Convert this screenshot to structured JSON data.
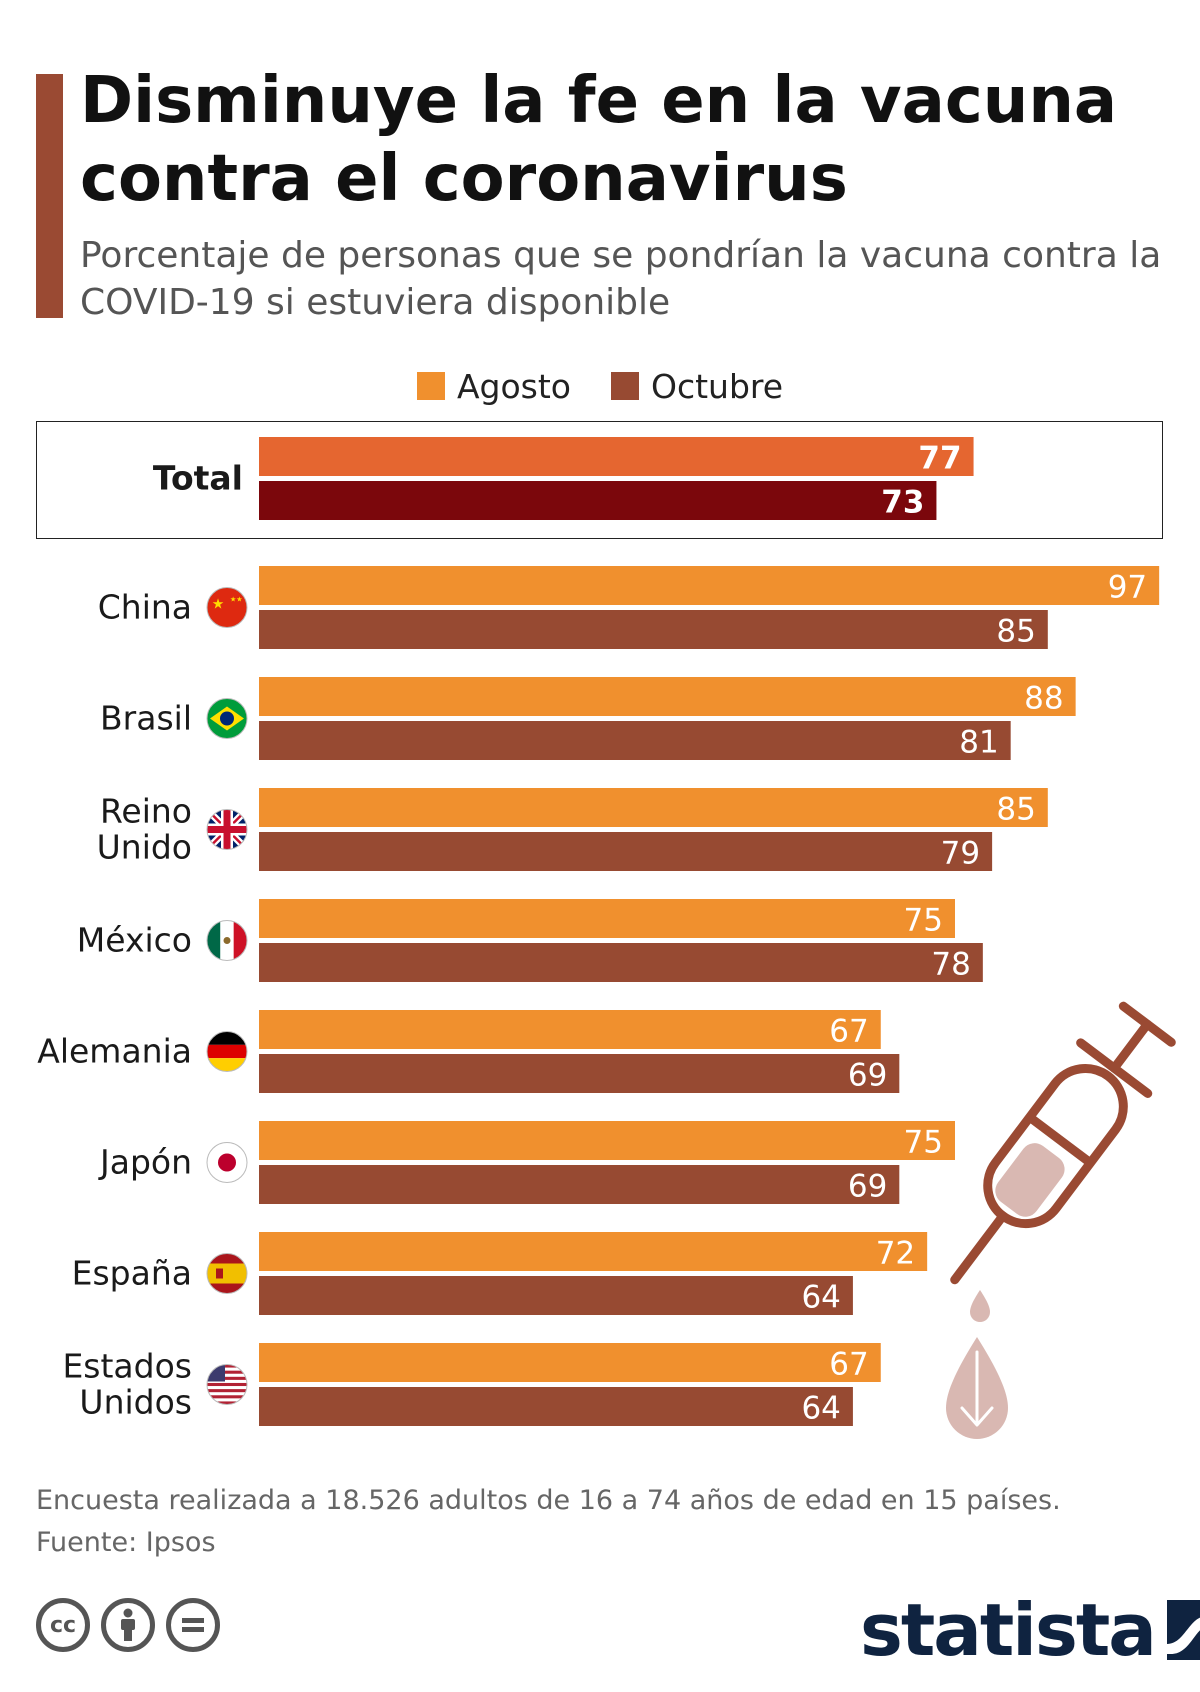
{
  "title": "Disminuye la fe en la vacuna contra el coronavirus",
  "subtitle": "Porcentaje de personas que se pondrían la vacuna contra la COVID-19 si estuviera disponible",
  "footnote": {
    "note": "Encuesta realizada a 18.526 adultos de 16 a 74 años de edad en 15 países.",
    "source": "Fuente: Ipsos"
  },
  "brand": "statista",
  "cc_icons": [
    "cc-icon",
    "attribution-icon",
    "no-derivatives-icon"
  ],
  "colors": {
    "accent": "#9a4a33",
    "agosto": "#f0902e",
    "octubre": "#974a32",
    "total_agosto": "#e56630",
    "total_octubre": "#7b070c",
    "syringe": "#9a4a33",
    "syringe_fill": "#d9b8b2"
  },
  "chart_data": {
    "type": "bar",
    "orientation": "horizontal",
    "xlim": [
      0,
      100
    ],
    "legend_position": "top-center",
    "grid": false,
    "series": [
      {
        "name": "Agosto",
        "values": [
          77,
          97,
          88,
          85,
          75,
          67,
          75,
          72,
          67
        ]
      },
      {
        "name": "Octubre",
        "values": [
          73,
          85,
          81,
          79,
          78,
          69,
          69,
          64,
          64
        ]
      }
    ],
    "categories": [
      {
        "label": [
          "Total"
        ],
        "flag": null,
        "highlight": true
      },
      {
        "label": [
          "China"
        ],
        "flag": "china-flag-icon"
      },
      {
        "label": [
          "Brasil"
        ],
        "flag": "brazil-flag-icon"
      },
      {
        "label": [
          "Reino",
          "Unido"
        ],
        "flag": "uk-flag-icon"
      },
      {
        "label": [
          "México"
        ],
        "flag": "mexico-flag-icon"
      },
      {
        "label": [
          "Alemania"
        ],
        "flag": "germany-flag-icon"
      },
      {
        "label": [
          "Japón"
        ],
        "flag": "japan-flag-icon"
      },
      {
        "label": [
          "España"
        ],
        "flag": "spain-flag-icon"
      },
      {
        "label": [
          "Estados",
          "Unidos"
        ],
        "flag": "usa-flag-icon"
      }
    ]
  }
}
